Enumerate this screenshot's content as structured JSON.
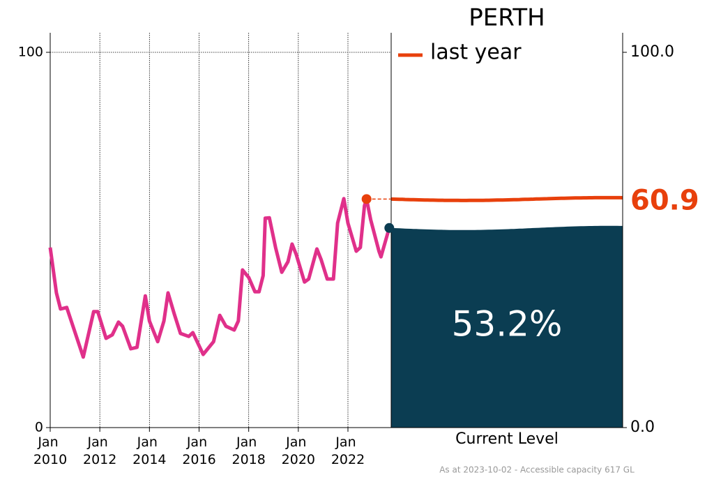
{
  "chart_data": {
    "type": "line",
    "title": "PERTH",
    "x": [
      "2010-01",
      "2010-04",
      "2010-06",
      "2010-09",
      "2011-05",
      "2011-10",
      "2011-12",
      "2012-04",
      "2012-07",
      "2012-10",
      "2012-12",
      "2013-04",
      "2013-07",
      "2013-11",
      "2014-01",
      "2014-05",
      "2014-08",
      "2014-10",
      "2015-01",
      "2015-04",
      "2015-08",
      "2015-10",
      "2016-03",
      "2016-08",
      "2016-11",
      "2017-02",
      "2017-06",
      "2017-08",
      "2017-10",
      "2018-01",
      "2018-04",
      "2018-06",
      "2018-08",
      "2018-09",
      "2018-11",
      "2019-02",
      "2019-05",
      "2019-08",
      "2019-10",
      "2019-12",
      "2020-04",
      "2020-06",
      "2020-10",
      "2020-12",
      "2021-03",
      "2021-06",
      "2021-08",
      "2021-11",
      "2022-01",
      "2022-05",
      "2022-07",
      "2022-09",
      "2022-10",
      "2022-12",
      "2023-04",
      "2023-05",
      "2023-08",
      "2023-09"
    ],
    "series": [
      {
        "color": "#e0308a",
        "values": [
          48.0,
          35.9,
          31.6,
          32.0,
          18.8,
          30.9,
          30.9,
          23.8,
          24.7,
          28.1,
          27.0,
          21.0,
          21.4,
          35.1,
          28.4,
          22.9,
          28.4,
          35.9,
          30.3,
          25.1,
          24.3,
          25.3,
          19.5,
          22.9,
          29.9,
          27.0,
          26.0,
          28.4,
          42.0,
          40.0,
          36.2,
          36.2,
          40.5,
          55.8,
          55.9,
          48.0,
          41.4,
          44.2,
          48.9,
          46.1,
          38.8,
          39.6,
          47.6,
          44.8,
          39.6,
          39.6,
          54.5,
          61.0,
          54.5,
          47.0,
          48.0,
          59.1,
          60.9,
          55.4,
          47.0,
          45.5,
          51.3,
          53.2
        ]
      }
    ],
    "xticks": [
      {
        "value": "2010-01",
        "label": "Jan 2010"
      },
      {
        "value": "2012-01",
        "label": "Jan 2012"
      },
      {
        "value": "2014-01",
        "label": "Jan 2014"
      },
      {
        "value": "2016-01",
        "label": "Jan 2016"
      },
      {
        "value": "2018-01",
        "label": "Jan 2018"
      },
      {
        "value": "2020-01",
        "label": "Jan 2020"
      },
      {
        "value": "2022-01",
        "label": "Jan 2022"
      }
    ],
    "ylim": [
      0,
      100
    ],
    "yticks": [
      0,
      100
    ],
    "y2lim": [
      0,
      100
    ],
    "y2ticks": [
      {
        "value": 0,
        "label": "0.0"
      },
      {
        "value": 100,
        "label": "100.0"
      }
    ],
    "grid": true,
    "last_year": {
      "name": "last year",
      "x": "2022-10",
      "value": 60.9,
      "value_label": "60.9",
      "color": "#e8400c"
    },
    "current_level": {
      "label": "Current Level",
      "value": 53.2,
      "value_label": "53.2%",
      "color": "#0b3d52"
    },
    "footnote": "As at 2023-10-02 - Accessible capacity 617 GL"
  }
}
